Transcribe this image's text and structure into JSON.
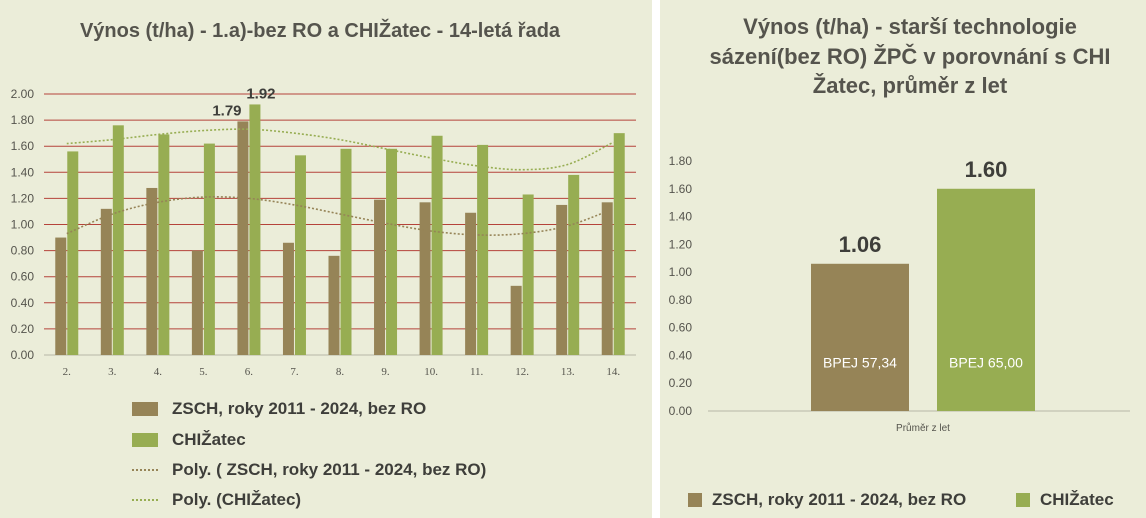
{
  "chart_data": [
    {
      "type": "bar",
      "title": "Výnos (t/ha) - 1.a)-bez RO a CHIŽatec - 14-letá řada",
      "categories": [
        "2.",
        "3.",
        "4.",
        "5.",
        "6.",
        "7.",
        "8.",
        "9.",
        "10.",
        "11.",
        "12.",
        "13.",
        "14."
      ],
      "series": [
        {
          "name": "ZSCH, roky 2011 - 2024, bez RO",
          "color": "#968457",
          "values": [
            0.9,
            1.12,
            1.28,
            0.8,
            1.79,
            0.86,
            0.76,
            1.19,
            1.17,
            1.09,
            0.53,
            1.15,
            1.17
          ]
        },
        {
          "name": "CHIŽatec",
          "color": "#97ad52",
          "values": [
            1.56,
            1.76,
            1.69,
            1.62,
            1.92,
            1.53,
            1.58,
            1.58,
            1.68,
            1.61,
            1.23,
            1.38,
            1.7
          ]
        }
      ],
      "trendlines": [
        {
          "name": "Poly. ( ZSCH, roky 2011 - 2024, bez RO)",
          "color": "#968457",
          "values": [
            0.93,
            1.08,
            1.17,
            1.21,
            1.2,
            1.15,
            1.08,
            1.01,
            0.95,
            0.92,
            0.93,
            0.99,
            1.12
          ]
        },
        {
          "name": "Poly. (CHIŽatec)",
          "color": "#97ad52",
          "values": [
            1.62,
            1.65,
            1.69,
            1.72,
            1.73,
            1.7,
            1.65,
            1.58,
            1.51,
            1.45,
            1.42,
            1.46,
            1.63
          ]
        }
      ],
      "data_labels": [
        {
          "category": "6.",
          "series": 0,
          "text": "1.79"
        },
        {
          "category": "6.",
          "series": 1,
          "text": "1.92"
        }
      ],
      "ylim": [
        0,
        2.0
      ],
      "yticks": [
        "0.00",
        "0.20",
        "0.40",
        "0.60",
        "0.80",
        "1.00",
        "1.20",
        "1.40",
        "1.60",
        "1.80",
        "2.00"
      ],
      "grid": true,
      "grid_color": "#b5433a",
      "legend": "bottom"
    },
    {
      "type": "bar",
      "title": "Výnos (t/ha) - starší technologie sázení(bez RO) ŽPČ v  porovnání s CHI Žatec, průměr z let",
      "categories": [
        "Průměr z let"
      ],
      "series": [
        {
          "name": "ZSCH, roky 2011 - 2024, bez RO",
          "color": "#968457",
          "values": [
            1.06
          ],
          "value_label": "1.06",
          "inner_label": "BPEJ 57,34"
        },
        {
          "name": "CHIŽatec",
          "color": "#97ad52",
          "values": [
            1.6
          ],
          "value_label": "1.60",
          "inner_label": "BPEJ 65,00"
        }
      ],
      "ylim": [
        0,
        1.8
      ],
      "yticks": [
        "0.00",
        "0.20",
        "0.40",
        "0.60",
        "0.80",
        "1.00",
        "1.20",
        "1.40",
        "1.60",
        "1.80"
      ],
      "grid": false,
      "legend": "bottom"
    }
  ]
}
